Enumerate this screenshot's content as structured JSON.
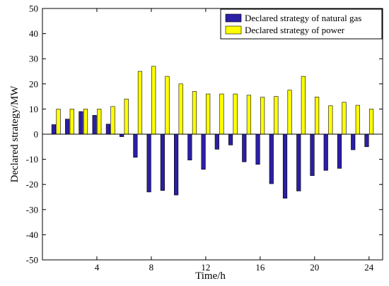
{
  "chart_data": {
    "type": "bar",
    "xlabel": "Time/h",
    "ylabel": "Declared strategy/MW",
    "ylim": [
      -50,
      50
    ],
    "xlim": [
      0,
      25
    ],
    "yticks": [
      -50,
      -40,
      -30,
      -20,
      -10,
      0,
      10,
      20,
      30,
      40,
      50
    ],
    "xticks": [
      4,
      8,
      12,
      16,
      20,
      24
    ],
    "x": [
      1,
      2,
      3,
      4,
      5,
      6,
      7,
      8,
      9,
      10,
      11,
      12,
      13,
      14,
      15,
      16,
      17,
      18,
      19,
      20,
      21,
      22,
      23,
      24
    ],
    "legend_position": "top-right",
    "grid": false,
    "series": [
      {
        "name": "Declared strategy of natural gas",
        "color": "#2b1fa4",
        "values": [
          3.8,
          6,
          9,
          7.5,
          4,
          -1,
          -9.2,
          -23,
          -22.4,
          -24.2,
          -10.3,
          -14,
          -6,
          -4.3,
          -11,
          -12,
          -19.7,
          -25.5,
          -22.6,
          -16.5,
          -14.4,
          -13.6,
          -6.2,
          -5
        ]
      },
      {
        "name": "Declared strategy of power",
        "color": "#ffff00",
        "values": [
          10,
          10,
          10,
          10,
          11,
          14,
          25,
          27,
          23,
          20,
          17,
          16,
          16,
          16,
          15.5,
          14.7,
          15,
          17.5,
          23,
          14.8,
          11.3,
          12.7,
          11.5,
          10
        ]
      }
    ]
  }
}
